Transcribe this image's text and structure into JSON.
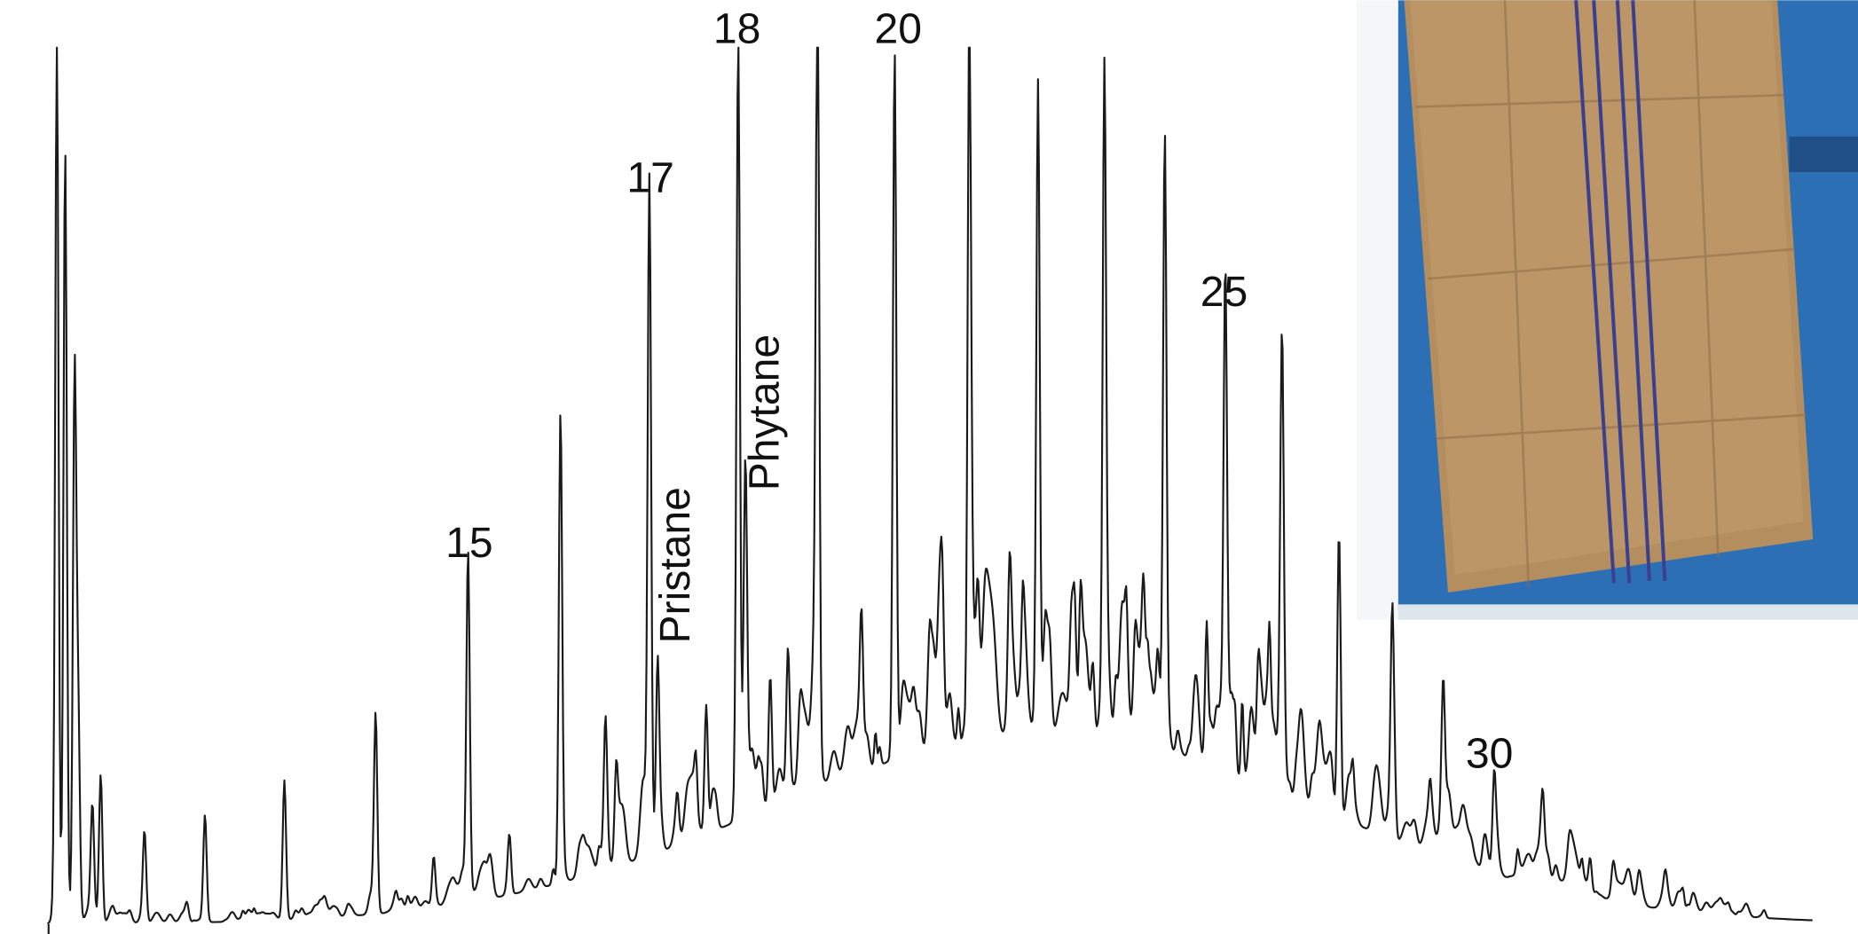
{
  "figure": {
    "peak_labels": [
      "15",
      "17",
      "Pristane",
      "18",
      "Phytane",
      "20",
      "25",
      "30"
    ]
  }
}
